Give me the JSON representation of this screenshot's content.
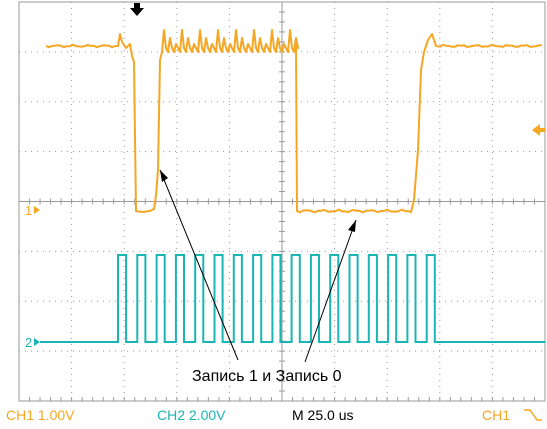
{
  "oscilloscope": {
    "annotation": "Запись 1 и Запись 0",
    "channel_markers": {
      "ch1": "1",
      "ch2": "2"
    },
    "status": {
      "ch1_scale": "CH1  1.00V",
      "ch2_scale": "CH2  2.00V",
      "timebase": "M 25.0 us",
      "trigger": "CH1"
    },
    "colors": {
      "ch1": "#f5a623",
      "ch2": "#1bb5b5",
      "grid": "#9a9a9a",
      "text": "#000000"
    },
    "icons": {
      "trigger_position": "down-arrow-icon",
      "trigger_level": "left-arrow-icon",
      "trigger_slope": "falling-edge-icon"
    }
  }
}
